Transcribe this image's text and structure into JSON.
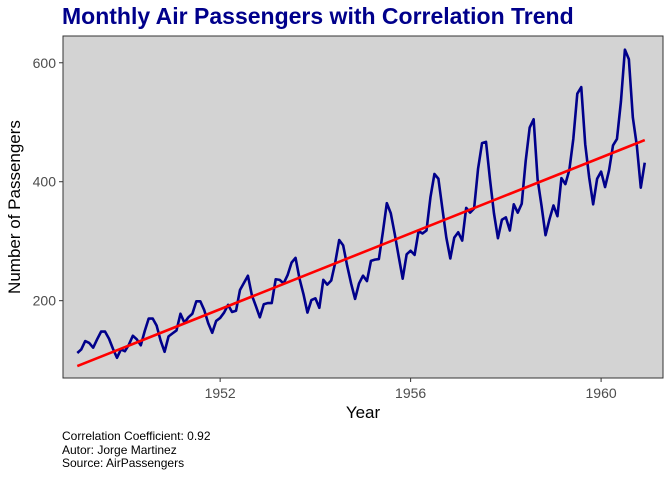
{
  "chart_data": {
    "type": "line",
    "title": "Monthly Air Passengers with Correlation Trend",
    "xlabel": "Year",
    "ylabel": "Number of Passengers",
    "x_start_year": 1949,
    "x_ticks": [
      1952,
      1956,
      1960
    ],
    "y_ticks": [
      200,
      400,
      600
    ],
    "xlim": [
      1948.7,
      1961.3
    ],
    "ylim": [
      70,
      645
    ],
    "grid": false,
    "legend": "none",
    "series": [
      {
        "color": "#00008B",
        "values": [
          112,
          118,
          132,
          129,
          121,
          135,
          148,
          148,
          136,
          119,
          104,
          118,
          115,
          126,
          141,
          135,
          125,
          149,
          170,
          170,
          158,
          133,
          114,
          140,
          145,
          150,
          178,
          163,
          172,
          178,
          199,
          199,
          184,
          162,
          146,
          166,
          171,
          180,
          193,
          181,
          183,
          218,
          230,
          242,
          209,
          191,
          172,
          194,
          196,
          196,
          236,
          235,
          229,
          243,
          264,
          272,
          237,
          211,
          180,
          201,
          204,
          188,
          235,
          227,
          234,
          264,
          302,
          293,
          259,
          229,
          203,
          229,
          242,
          233,
          267,
          269,
          270,
          315,
          364,
          347,
          312,
          274,
          237,
          278,
          284,
          277,
          317,
          313,
          318,
          374,
          413,
          405,
          355,
          306,
          271,
          306,
          315,
          301,
          356,
          348,
          355,
          422,
          465,
          467,
          404,
          347,
          305,
          336,
          340,
          318,
          362,
          348,
          363,
          435,
          491,
          505,
          404,
          359,
          310,
          337,
          360,
          342,
          406,
          396,
          420,
          472,
          548,
          559,
          463,
          407,
          362,
          405,
          417,
          391,
          419,
          461,
          472,
          535,
          622,
          606,
          508,
          461,
          390,
          432
        ]
      }
    ],
    "trend": {
      "color": "#FF0000",
      "start": [
        1949.0,
        90
      ],
      "end": [
        1960.917,
        470
      ]
    }
  },
  "caption": {
    "line1": "Correlation Coefficient: 0.92",
    "line2": "Autor: Jorge Martinez",
    "line3": "Source: AirPassengers"
  },
  "colors": {
    "panel_background": "#D3D3D3",
    "series_line": "#00008B",
    "trend_line": "#FF0000",
    "title": "#00008B"
  }
}
